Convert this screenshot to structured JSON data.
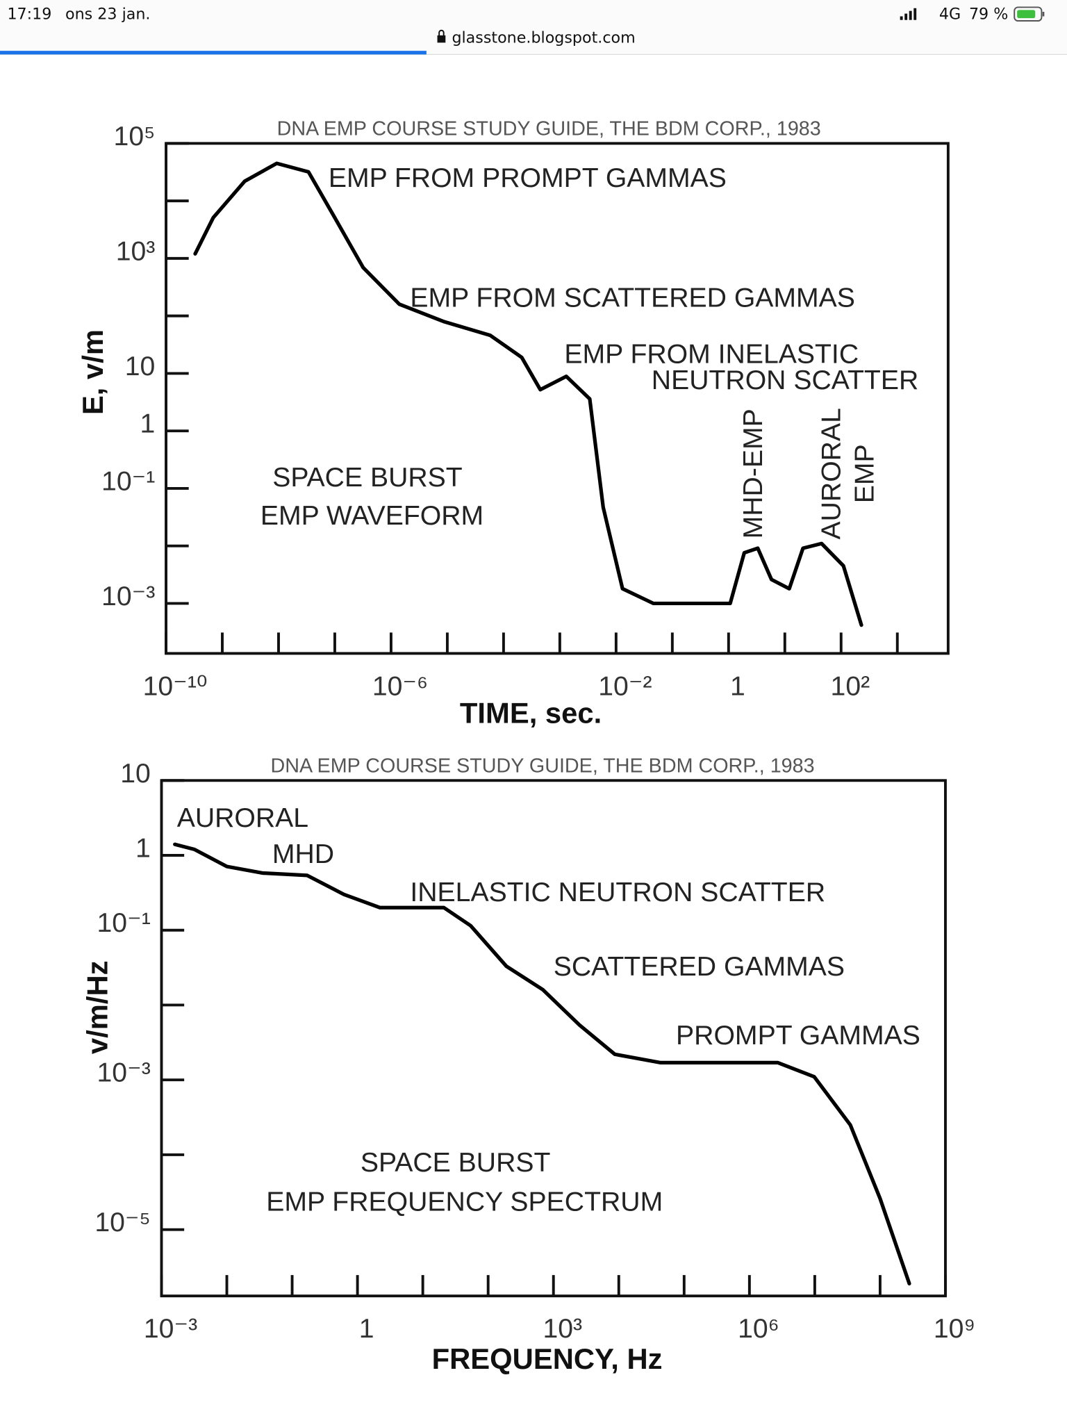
{
  "status_bar": {
    "time": "17:19",
    "date": "ons 23 jan.",
    "network": "4G",
    "battery": "79 %"
  },
  "address_bar": {
    "url": "glasstone.blogspot.com"
  },
  "chart_data": [
    {
      "type": "line",
      "source": "DNA EMP COURSE STUDY GUIDE, THE BDM CORP., 1983",
      "x_label": "TIME, sec.",
      "y_label": "E, v/m",
      "log_x": true,
      "log_y": true,
      "xlim": [
        1e-10,
        8000
      ],
      "ylim": [
        0.000135,
        100000
      ],
      "xticks": [
        {
          "value": 1e-10,
          "label": "10⁻¹⁰"
        },
        {
          "value": 1e-06,
          "label": "10⁻⁶"
        },
        {
          "value": 0.01,
          "label": "10⁻²"
        },
        1,
        {
          "value": 100,
          "label": "10²"
        }
      ],
      "minor_xticks": [
        1e-09,
        1e-08,
        1e-07,
        1e-05,
        0.0001,
        0.001,
        0.1,
        10,
        1000
      ],
      "yticks": [
        {
          "value": 100000,
          "label": "10⁵"
        },
        {
          "value": 1000,
          "label": "10³"
        },
        10,
        1,
        {
          "value": 0.1,
          "label": "10⁻¹"
        },
        {
          "value": 0.001,
          "label": "10⁻³"
        }
      ],
      "minor_yticks": [
        10000,
        100,
        0.01
      ],
      "annotations": [
        "EMP FROM PROMPT GAMMAS",
        "EMP FROM SCATTERED GAMMAS",
        "EMP FROM INELASTIC",
        "NEUTRON SCATTER",
        "SPACE BURST",
        "EMP WAVEFORM",
        "MHD-EMP",
        "AURORAL",
        "EMP"
      ],
      "series": [
        {
          "color": "#000000",
          "x": [
            3.3e-10,
            6.9e-10,
            2.5e-09,
            9.3e-09,
            3.4e-08,
            1e-07,
            3.2e-07,
            1.4e-06,
            8.9e-06,
            5.8e-05,
            0.00021,
            0.00045,
            0.0013,
            0.0034,
            0.0059,
            0.013,
            0.046,
            1.07,
            1.9,
            3.3,
            5.8,
            12,
            21,
            45,
            110,
            230
          ],
          "values": [
            1200,
            5100,
            22000,
            45000,
            32000,
            5100,
            690,
            160,
            79,
            46,
            19,
            5.2,
            8.9,
            3.6,
            0.047,
            0.0018,
            0.001,
            0.001,
            0.0076,
            0.0091,
            0.0026,
            0.0018,
            0.0091,
            0.011,
            0.0045,
            0.00042
          ]
        }
      ]
    },
    {
      "type": "line",
      "source": "DNA EMP COURSE STUDY GUIDE, THE BDM CORP., 1983",
      "x_label": "FREQUENCY, Hz",
      "y_label": "v/m/Hz",
      "log_x": true,
      "log_y": true,
      "xlim": [
        0.001,
        1000000000
      ],
      "ylim": [
        1.3e-06,
        10
      ],
      "xticks": [
        {
          "value": 0.001,
          "label": "10⁻³"
        },
        1,
        {
          "value": 1000,
          "label": "10³"
        },
        {
          "value": 1000000,
          "label": "10⁶"
        },
        {
          "value": 1000000000,
          "label": "10⁹"
        }
      ],
      "minor_xticks": [
        0.01,
        0.1,
        10,
        100,
        10000,
        100000,
        10000000,
        100000000
      ],
      "yticks": [
        10,
        1,
        {
          "value": 0.1,
          "label": "10⁻¹"
        },
        {
          "value": 0.001,
          "label": "10⁻³"
        },
        {
          "value": 1e-05,
          "label": "10⁻⁵"
        }
      ],
      "minor_yticks": [
        0.01,
        0.0001
      ],
      "annotations": [
        "AURORAL",
        "MHD",
        "INELASTIC NEUTRON SCATTER",
        "SCATTERED GAMMAS",
        "PROMPT GAMMAS",
        "SPACE BURST",
        "EMP FREQUENCY SPECTRUM"
      ],
      "series": [
        {
          "color": "#000000",
          "x": [
            0.0016,
            0.0032,
            0.01,
            0.035,
            0.17,
            0.62,
            2.2,
            21,
            54,
            190,
            690,
            2500,
            8700,
            43000,
            2700000,
            9800000,
            35000000,
            100000000,
            280000000
          ],
          "values": [
            1.4,
            1.2,
            0.71,
            0.58,
            0.54,
            0.3,
            0.2,
            0.2,
            0.115,
            0.033,
            0.016,
            0.0054,
            0.0022,
            0.0017,
            0.0017,
            0.0011,
            0.00025,
            2.6e-05,
            1.9e-06
          ]
        }
      ]
    }
  ]
}
